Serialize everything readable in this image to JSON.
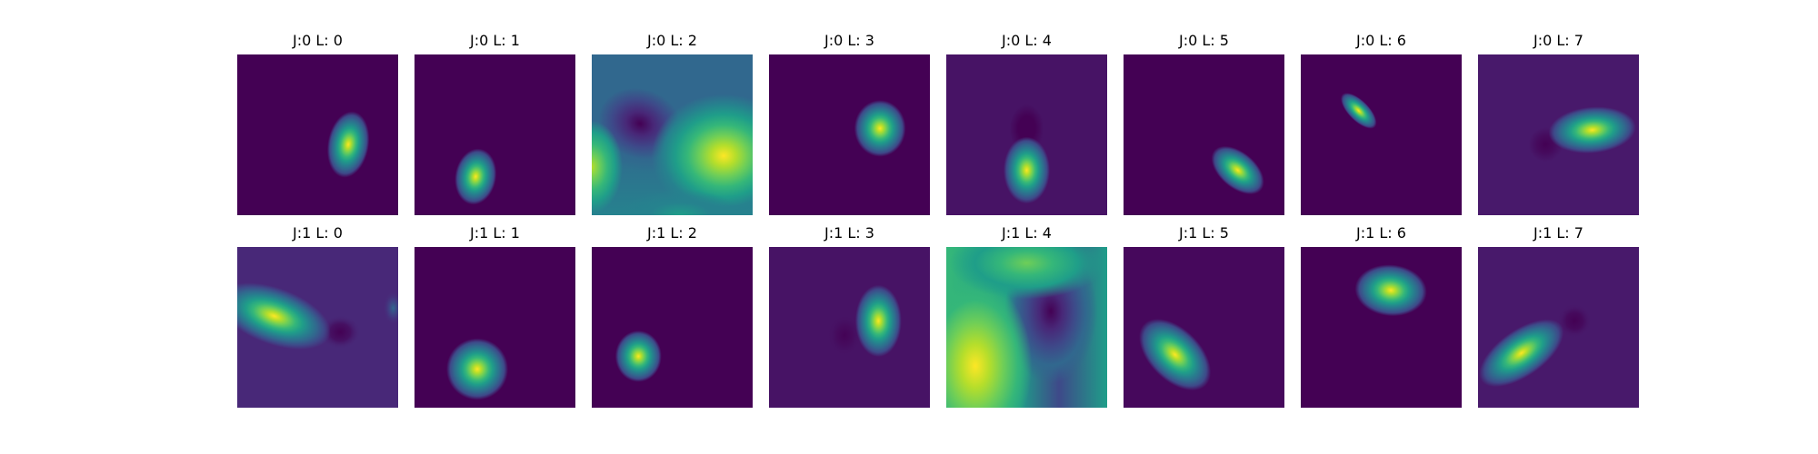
{
  "chart_data": {
    "type": "heatmap",
    "colormap": "viridis",
    "colors": {
      "colormap_stops": [
        "#440154",
        "#482878",
        "#3e4989",
        "#31688e",
        "#26828e",
        "#1f9e89",
        "#35b779",
        "#6ece58",
        "#b5de2b",
        "#fde725"
      ]
    },
    "layout": "2 rows x 8 columns",
    "axes_visible": false,
    "panels": [
      {
        "title": "J:0 L: 0",
        "J": 0,
        "L": 0,
        "description": "small bright ellipse, slightly tilted"
      },
      {
        "title": "J:0 L: 1",
        "J": 0,
        "L": 1,
        "description": "small bright blob"
      },
      {
        "title": "J:0 L: 2",
        "J": 0,
        "L": 2,
        "description": "broad smooth field with dark hollow and bright lobes"
      },
      {
        "title": "J:0 L: 3",
        "J": 0,
        "L": 3,
        "description": "small bright blob"
      },
      {
        "title": "J:0 L: 4",
        "J": 0,
        "L": 4,
        "description": "bright ellipse with faint dark shadow"
      },
      {
        "title": "J:0 L: 5",
        "J": 0,
        "L": 5,
        "description": "tilted bright ellipse"
      },
      {
        "title": "J:0 L: 6",
        "J": 0,
        "L": 6,
        "description": "narrow tilted bright streak"
      },
      {
        "title": "J:0 L: 7",
        "J": 0,
        "L": 7,
        "description": "horizontal bright ellipse with faint dark shadow"
      },
      {
        "title": "J:1 L: 0",
        "J": 1,
        "L": 0,
        "description": "tilted bright ellipse with dark spot"
      },
      {
        "title": "J:1 L: 1",
        "J": 1,
        "L": 1,
        "description": "round bright blob"
      },
      {
        "title": "J:1 L: 2",
        "J": 1,
        "L": 2,
        "description": "small bright blob"
      },
      {
        "title": "J:1 L: 3",
        "J": 1,
        "L": 3,
        "description": "vertical bright ellipse with faint shadow"
      },
      {
        "title": "J:1 L: 4",
        "J": 1,
        "L": 4,
        "description": "broad smooth field with bright lower-left lobe and dark upper-right hollow"
      },
      {
        "title": "J:1 L: 5",
        "J": 1,
        "L": 5,
        "description": "large tilted bright ellipse"
      },
      {
        "title": "J:1 L: 6",
        "J": 1,
        "L": 6,
        "description": "horizontal bright ellipse"
      },
      {
        "title": "J:1 L: 7",
        "J": 1,
        "L": 7,
        "description": "tilted bright ellipse with faint dark spot"
      }
    ]
  }
}
